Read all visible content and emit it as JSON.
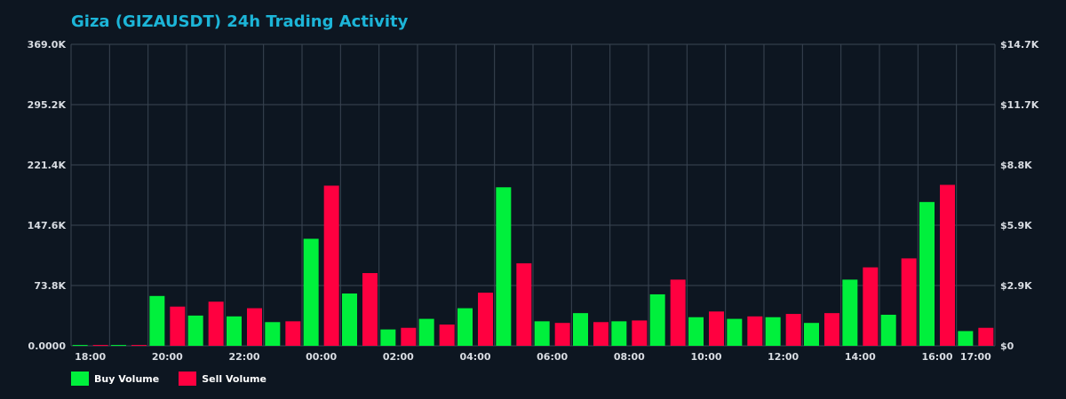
{
  "chart_data": {
    "type": "bar",
    "title": "Giza (GIZAUSDT) 24h Trading Activity",
    "y_left": {
      "ticks": [
        "0.0000",
        "73.8K",
        "147.6K",
        "221.4K",
        "295.2K",
        "369.0K"
      ],
      "max": 369000
    },
    "y_right": {
      "ticks": [
        "$0",
        "$2.9K",
        "$5.9K",
        "$8.8K",
        "$11.7K",
        "$14.7K"
      ]
    },
    "x_ticks": [
      {
        "label": "18:00",
        "hour": 0
      },
      {
        "label": "20:00",
        "hour": 2
      },
      {
        "label": "22:00",
        "hour": 4
      },
      {
        "label": "00:00",
        "hour": 6
      },
      {
        "label": "02:00",
        "hour": 8
      },
      {
        "label": "04:00",
        "hour": 10
      },
      {
        "label": "06:00",
        "hour": 12
      },
      {
        "label": "08:00",
        "hour": 14
      },
      {
        "label": "10:00",
        "hour": 16
      },
      {
        "label": "12:00",
        "hour": 18
      },
      {
        "label": "14:00",
        "hour": 20
      },
      {
        "label": "16:00",
        "hour": 22
      },
      {
        "label": "17:00",
        "hour": 23
      }
    ],
    "grid": true,
    "legend_position": "bottom-left",
    "series": [
      {
        "name": "Buy Volume",
        "color": "#00f03c",
        "values": [
          1000,
          1000,
          61000,
          37000,
          36000,
          29000,
          131000,
          64000,
          20000,
          33000,
          46000,
          194000,
          30000,
          40000,
          30000,
          63000,
          35000,
          33000,
          35000,
          28000,
          81000,
          38000,
          176000,
          18000
        ]
      },
      {
        "name": "Sell Volume",
        "color": "#ff0040",
        "values": [
          1000,
          1000,
          48000,
          54000,
          46000,
          30000,
          196000,
          89000,
          22000,
          26000,
          65000,
          101000,
          28000,
          29000,
          31000,
          81000,
          42000,
          36000,
          39000,
          40000,
          96000,
          107000,
          197000,
          22000
        ]
      }
    ]
  },
  "legend": {
    "buy_label": "Buy Volume",
    "sell_label": "Sell Volume"
  }
}
